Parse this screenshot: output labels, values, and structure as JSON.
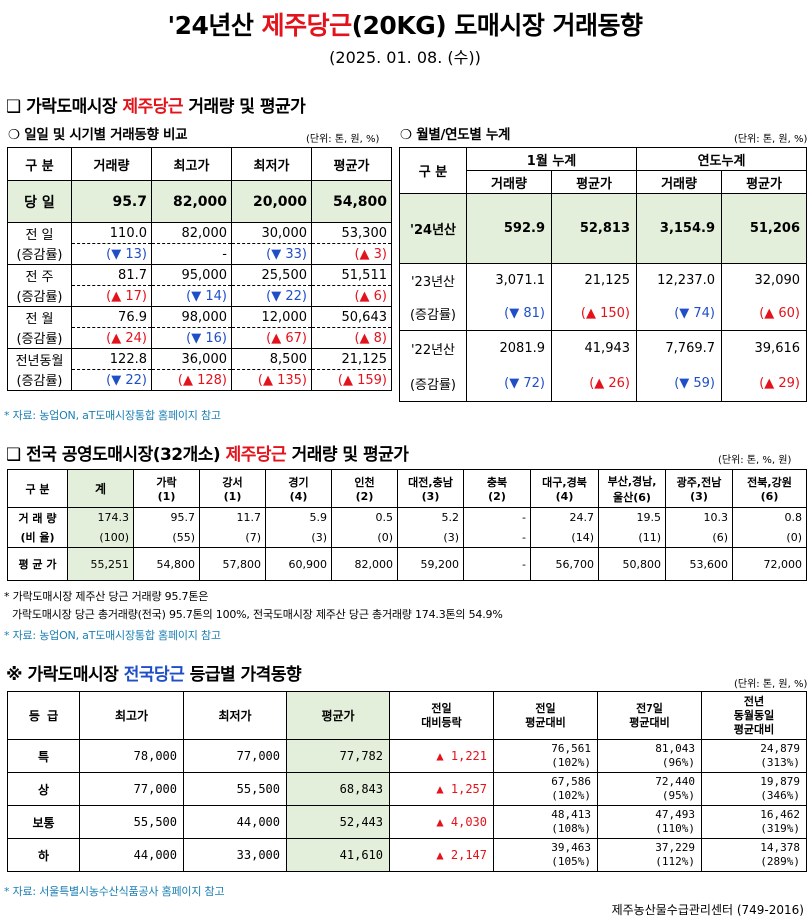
{
  "title": {
    "prefix": "'24년산 ",
    "highlight": "제주당근",
    "suffix": "(20KG) 도매시장 거래동향"
  },
  "date": "(2025. 01. 08. (수))",
  "section1": {
    "bullet": "❑",
    "title_prefix": "가락도매시장 ",
    "title_highlight": "제주당근",
    "title_suffix": " 거래량 및 평균가",
    "left": {
      "bullet": "❍",
      "title": "일일 및 시기별 거래동향 비교",
      "unit": "(단위: 톤, 원, %)",
      "headers": [
        "구  분",
        "거래량",
        "최고가",
        "최저가",
        "평균가"
      ],
      "today": {
        "label": "당  일",
        "values": [
          "95.7",
          "82,000",
          "20,000",
          "54,800"
        ]
      },
      "rows": [
        {
          "label": "전  일",
          "values": [
            "110.0",
            "82,000",
            "30,000",
            "53,300"
          ],
          "change_label": "(증감률)",
          "changes": [
            {
              "dir": "down",
              "text": "(▼ 13)"
            },
            {
              "dir": "none",
              "text": "-"
            },
            {
              "dir": "down",
              "text": "(▼ 33)"
            },
            {
              "dir": "up",
              "text": "(▲ 3)"
            }
          ]
        },
        {
          "label": "전  주",
          "values": [
            "81.7",
            "95,000",
            "25,500",
            "51,511"
          ],
          "change_label": "(증감률)",
          "changes": [
            {
              "dir": "up",
              "text": "(▲ 17)"
            },
            {
              "dir": "down",
              "text": "(▼ 14)"
            },
            {
              "dir": "down",
              "text": "(▼ 22)"
            },
            {
              "dir": "up",
              "text": "(▲ 6)"
            }
          ]
        },
        {
          "label": "전  월",
          "values": [
            "76.9",
            "98,000",
            "12,000",
            "50,643"
          ],
          "change_label": "(증감률)",
          "changes": [
            {
              "dir": "up",
              "text": "(▲ 24)"
            },
            {
              "dir": "down",
              "text": "(▼ 16)"
            },
            {
              "dir": "up",
              "text": "(▲ 67)"
            },
            {
              "dir": "up",
              "text": "(▲ 8)"
            }
          ]
        },
        {
          "label": "전년동월",
          "values": [
            "122.8",
            "36,000",
            "8,500",
            "21,125"
          ],
          "change_label": "(증감률)",
          "changes": [
            {
              "dir": "down",
              "text": "(▼ 22)"
            },
            {
              "dir": "up",
              "text": "(▲ 128)"
            },
            {
              "dir": "up",
              "text": "(▲ 135)"
            },
            {
              "dir": "up",
              "text": "(▲ 159)"
            }
          ]
        }
      ]
    },
    "right": {
      "bullet": "❍",
      "title": "월별/연도별 누계",
      "unit": "(단위: 톤, 원, %)",
      "header_label": "구  분",
      "group1": "1월 누계",
      "group2": "연도누계",
      "subheaders": [
        "거래량",
        "평균가",
        "거래량",
        "평균가"
      ],
      "y24": {
        "label": "'24년산",
        "values": [
          "592.9",
          "52,813",
          "3,154.9",
          "51,206"
        ]
      },
      "y23": {
        "label": "'23년산",
        "values": [
          "3,071.1",
          "21,125",
          "12,237.0",
          "32,090"
        ],
        "change_label": "(증감률)",
        "changes": [
          {
            "dir": "down",
            "text": "(▼ 81)"
          },
          {
            "dir": "up",
            "text": "(▲ 150)"
          },
          {
            "dir": "down",
            "text": "(▼ 74)"
          },
          {
            "dir": "up",
            "text": "(▲ 60)"
          }
        ]
      },
      "y22": {
        "label": "'22년산",
        "values": [
          "2081.9",
          "41,943",
          "7,769.7",
          "39,616"
        ],
        "change_label": "(증감률)",
        "changes": [
          {
            "dir": "down",
            "text": "(▼ 72)"
          },
          {
            "dir": "up",
            "text": "(▲ 26)"
          },
          {
            "dir": "down",
            "text": "(▼ 59)"
          },
          {
            "dir": "up",
            "text": "(▲ 29)"
          }
        ]
      }
    },
    "source": "* 자료: 농업ON, aT도매시장통합 홈페이지 참고"
  },
  "section2": {
    "bullet": "❑",
    "title_prefix": "전국 공영도매시장(32개소) ",
    "title_highlight": "제주당근",
    "title_suffix": " 거래량 및 평균가",
    "unit": "(단위: 톤, %, 원)",
    "header_label": "구  분",
    "columns": [
      {
        "name": "계",
        "count": ""
      },
      {
        "name": "가락",
        "count": "(1)"
      },
      {
        "name": "강서",
        "count": "(1)"
      },
      {
        "name": "경기",
        "count": "(4)"
      },
      {
        "name": "인천",
        "count": "(2)"
      },
      {
        "name": "대전,충남",
        "count": "(3)"
      },
      {
        "name": "충북",
        "count": "(2)"
      },
      {
        "name": "대구,경북",
        "count": "(4)"
      },
      {
        "name": "부산,경남,",
        "count": "울산(6)"
      },
      {
        "name": "광주,전남",
        "count": "(3)"
      },
      {
        "name": "전북,강원",
        "count": "(6)"
      }
    ],
    "volume_label": "거 래 량",
    "ratio_label": "(비 율)",
    "price_label": "평 균 가",
    "volume": [
      "174.3",
      "95.7",
      "11.7",
      "5.9",
      "0.5",
      "5.2",
      "-",
      "24.7",
      "19.5",
      "10.3",
      "0.8"
    ],
    "ratio": [
      "(100)",
      "(55)",
      "(7)",
      "(3)",
      "(0)",
      "(3)",
      "-",
      "(14)",
      "(11)",
      "(6)",
      "(0)"
    ],
    "price": [
      "55,251",
      "54,800",
      "57,800",
      "60,900",
      "82,000",
      "59,200",
      "-",
      "56,700",
      "50,800",
      "53,600",
      "72,000"
    ],
    "note1": "* 가락도매시장 제주산 당근 거래량 95.7톤은",
    "note2": "가락도매시장 당근 총거래량(전국) 95.7톤의 100%, 전국도매시장 제주산 당근 총거래량 174.3톤의 54.9%",
    "source": "* 자료: 농업ON, aT도매시장통합 홈페이지 참고"
  },
  "section3": {
    "bullet": "※",
    "title_prefix": "가락도매시장 ",
    "title_highlight": "전국당근",
    "title_suffix": " 등급별 가격동향",
    "unit": "(단위: 톤, 원, %)",
    "headers": [
      "등  급",
      "최고가",
      "최저가",
      "평균가",
      "전일\n대비등락",
      "전일\n평균대비",
      "전7일\n평균대비",
      "전년\n동월동일\n평균대비"
    ],
    "rows": [
      {
        "grade": "특",
        "max": "78,000",
        "min": "77,000",
        "avg": "77,782",
        "change": "▲ 1,221",
        "prev_day": "76,561",
        "prev_day_pct": "(102%)",
        "prev7": "81,043",
        "prev7_pct": "(96%)",
        "prev_year": "24,879",
        "prev_year_pct": "(313%)"
      },
      {
        "grade": "상",
        "max": "77,000",
        "min": "55,500",
        "avg": "68,843",
        "change": "▲ 1,257",
        "prev_day": "67,586",
        "prev_day_pct": "(102%)",
        "prev7": "72,440",
        "prev7_pct": "(95%)",
        "prev_year": "19,879",
        "prev_year_pct": "(346%)"
      },
      {
        "grade": "보통",
        "max": "55,500",
        "min": "44,000",
        "avg": "52,443",
        "change": "▲ 4,030",
        "prev_day": "48,413",
        "prev_day_pct": "(108%)",
        "prev7": "47,493",
        "prev7_pct": "(110%)",
        "prev_year": "16,462",
        "prev_year_pct": "(319%)"
      },
      {
        "grade": "하",
        "max": "44,000",
        "min": "33,000",
        "avg": "41,610",
        "change": "▲ 2,147",
        "prev_day": "39,463",
        "prev_day_pct": "(105%)",
        "prev7": "37,229",
        "prev7_pct": "(112%)",
        "prev_year": "14,378",
        "prev_year_pct": "(289%)"
      }
    ],
    "source": "* 자료: 서울특별시농수산식품공사 홈페이지 참고"
  },
  "footer": "제주농산물수급관리센터 (749-2016)",
  "colors": {
    "highlight_red": "#e3121b",
    "highlight_blue": "#1f4fc7",
    "green_fill": "#e3efda",
    "source_text": "#1a7fb5"
  }
}
